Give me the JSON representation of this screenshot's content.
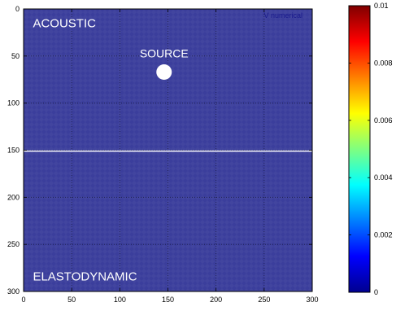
{
  "chart_data": [
    {
      "type": "heatmap",
      "legend": "V numerical",
      "xlim": [
        0,
        300
      ],
      "ylim": [
        0,
        300
      ],
      "y_inverted": true,
      "x_ticks": [
        0,
        50,
        100,
        150,
        200,
        250,
        300
      ],
      "y_ticks": [
        0,
        50,
        100,
        150,
        200,
        250,
        300
      ],
      "x_tick_labels": [
        "0",
        "50",
        "100",
        "150",
        "200",
        "250",
        "300"
      ],
      "y_tick_labels": [
        "0",
        "50",
        "100",
        "150",
        "200",
        "250",
        "300"
      ],
      "grid": true,
      "field_value": 0,
      "field_color": "#3b3e9c",
      "interface": {
        "y": 151,
        "color": "#ffffff"
      },
      "source": {
        "x": 146,
        "y": 67,
        "label": "SOURCE"
      },
      "region_labels": [
        {
          "name": "acoustic",
          "text": "ACOUSTIC",
          "x": 8,
          "y": 15
        },
        {
          "name": "elastodynamic",
          "text": "ELASTODYNAMIC",
          "x": 8,
          "y": 284
        }
      ]
    },
    {
      "type": "colorbar",
      "colormap": "jet",
      "range": [
        0,
        0.01
      ],
      "ticks": [
        0,
        0.002,
        0.004,
        0.006,
        0.008,
        0.01
      ],
      "tick_labels": [
        "0",
        "0.002",
        "0.004",
        "0.006",
        "0.008",
        "0.01"
      ]
    }
  ]
}
